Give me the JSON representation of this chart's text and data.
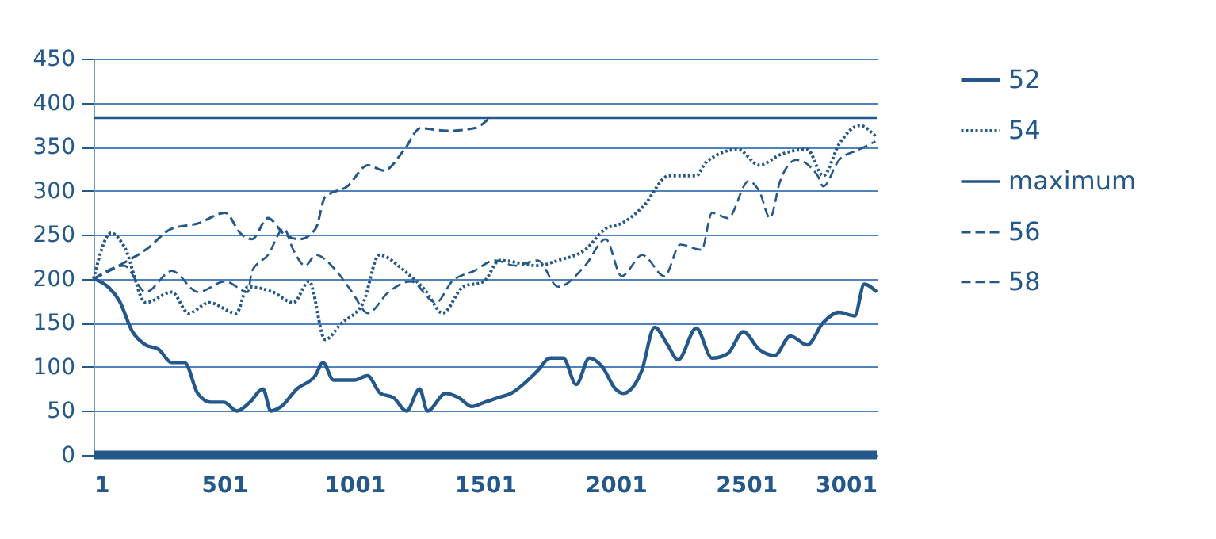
{
  "chart_data": {
    "type": "line",
    "xlim": [
      1,
      3001
    ],
    "xticks": [
      1,
      501,
      1001,
      1501,
      2001,
      2501,
      3001
    ],
    "ylim": [
      0,
      450
    ],
    "yticks": [
      0,
      50,
      100,
      150,
      200,
      250,
      300,
      350,
      400,
      450
    ],
    "grid": "y",
    "legend": "right",
    "marker": "none",
    "series": [
      {
        "name": "52",
        "color": "#24578a",
        "line_style": "solid",
        "x": [
          1,
          60,
          100,
          150,
          200,
          250,
          300,
          350,
          400,
          450,
          500,
          550,
          600,
          650,
          680,
          720,
          780,
          850,
          880,
          920,
          1000,
          1050,
          1100,
          1150,
          1200,
          1250,
          1280,
          1350,
          1400,
          1450,
          1500,
          1550,
          1600,
          1700,
          1750,
          1800,
          1850,
          1900,
          1950,
          2000,
          2030,
          2100,
          2150,
          2200,
          2240,
          2310,
          2370,
          2430,
          2490,
          2550,
          2610,
          2670,
          2735,
          2795,
          2856,
          2917,
          2953,
          3001
        ],
        "values": [
          200,
          190,
          175,
          140,
          125,
          120,
          105,
          105,
          70,
          60,
          60,
          50,
          60,
          75,
          50,
          55,
          75,
          90,
          105,
          85,
          85,
          90,
          70,
          65,
          50,
          75,
          50,
          70,
          65,
          55,
          60,
          65,
          70,
          95,
          110,
          110,
          80,
          110,
          100,
          75,
          70,
          95,
          145,
          125,
          108,
          144,
          110,
          115,
          140,
          120,
          113,
          135,
          125,
          150,
          162,
          158,
          194,
          185
        ]
      },
      {
        "name": "54",
        "color": "#24578a",
        "line_style": "dotted",
        "x": [
          1,
          68,
          118,
          201,
          301,
          365,
          444,
          548,
          592,
          687,
          766,
          827,
          888,
          949,
          1034,
          1095,
          1192,
          1277,
          1338,
          1417,
          1496,
          1556,
          1702,
          1781,
          1884,
          1963,
          2024,
          2103,
          2206,
          2310,
          2346,
          2468,
          2552,
          2631,
          2735,
          2796,
          2857,
          2935,
          2996
        ],
        "values": [
          200,
          252,
          237,
          173,
          185,
          161,
          173,
          161,
          191,
          185,
          173,
          197,
          131,
          149,
          173,
          227,
          209,
          185,
          161,
          191,
          197,
          221,
          215,
          221,
          233,
          257,
          263,
          281,
          317,
          317,
          332,
          347,
          329,
          341,
          347,
          317,
          353,
          374,
          362
        ]
      },
      {
        "name": "maximum",
        "color": "#24578a",
        "line_style": "solid",
        "x": [
          1,
          3001
        ],
        "values": [
          383,
          383
        ]
      },
      {
        "name": "56",
        "color": "#24578a",
        "line_style": "dashed",
        "x": [
          1,
          98,
          201,
          301,
          402,
          505,
          566,
          608,
          669,
          730,
          791,
          852,
          888,
          973,
          1052,
          1113,
          1192,
          1253,
          1356,
          1459,
          1520
        ],
        "values": [
          200,
          215,
          233,
          257,
          263,
          275,
          251,
          245,
          269,
          251,
          245,
          257,
          293,
          305,
          329,
          323,
          347,
          371,
          368,
          371,
          383
        ]
      },
      {
        "name": "58",
        "color": "#24578a",
        "line_style": "dashed",
        "x": [
          1,
          118,
          201,
          301,
          402,
          505,
          592,
          608,
          669,
          730,
          766,
          812,
          852,
          931,
          991,
          1052,
          1131,
          1216,
          1313,
          1374,
          1459,
          1538,
          1617,
          1702,
          1781,
          1884,
          1963,
          2024,
          2103,
          2188,
          2249,
          2330,
          2370,
          2431,
          2510,
          2552,
          2592,
          2631,
          2692,
          2775,
          2796,
          2857,
          2935,
          2996
        ],
        "values": [
          200,
          215,
          185,
          209,
          185,
          197,
          185,
          209,
          227,
          257,
          233,
          215,
          227,
          209,
          185,
          161,
          185,
          197,
          173,
          197,
          209,
          221,
          215,
          221,
          191,
          215,
          245,
          203,
          227,
          203,
          239,
          233,
          275,
          269,
          311,
          299,
          269,
          311,
          335,
          317,
          305,
          335,
          347,
          356
        ]
      },
      {
        "color": "#24578a",
        "line_style": "solid",
        "x": [
          1,
          3001
        ],
        "values": [
          0,
          0
        ]
      }
    ]
  }
}
